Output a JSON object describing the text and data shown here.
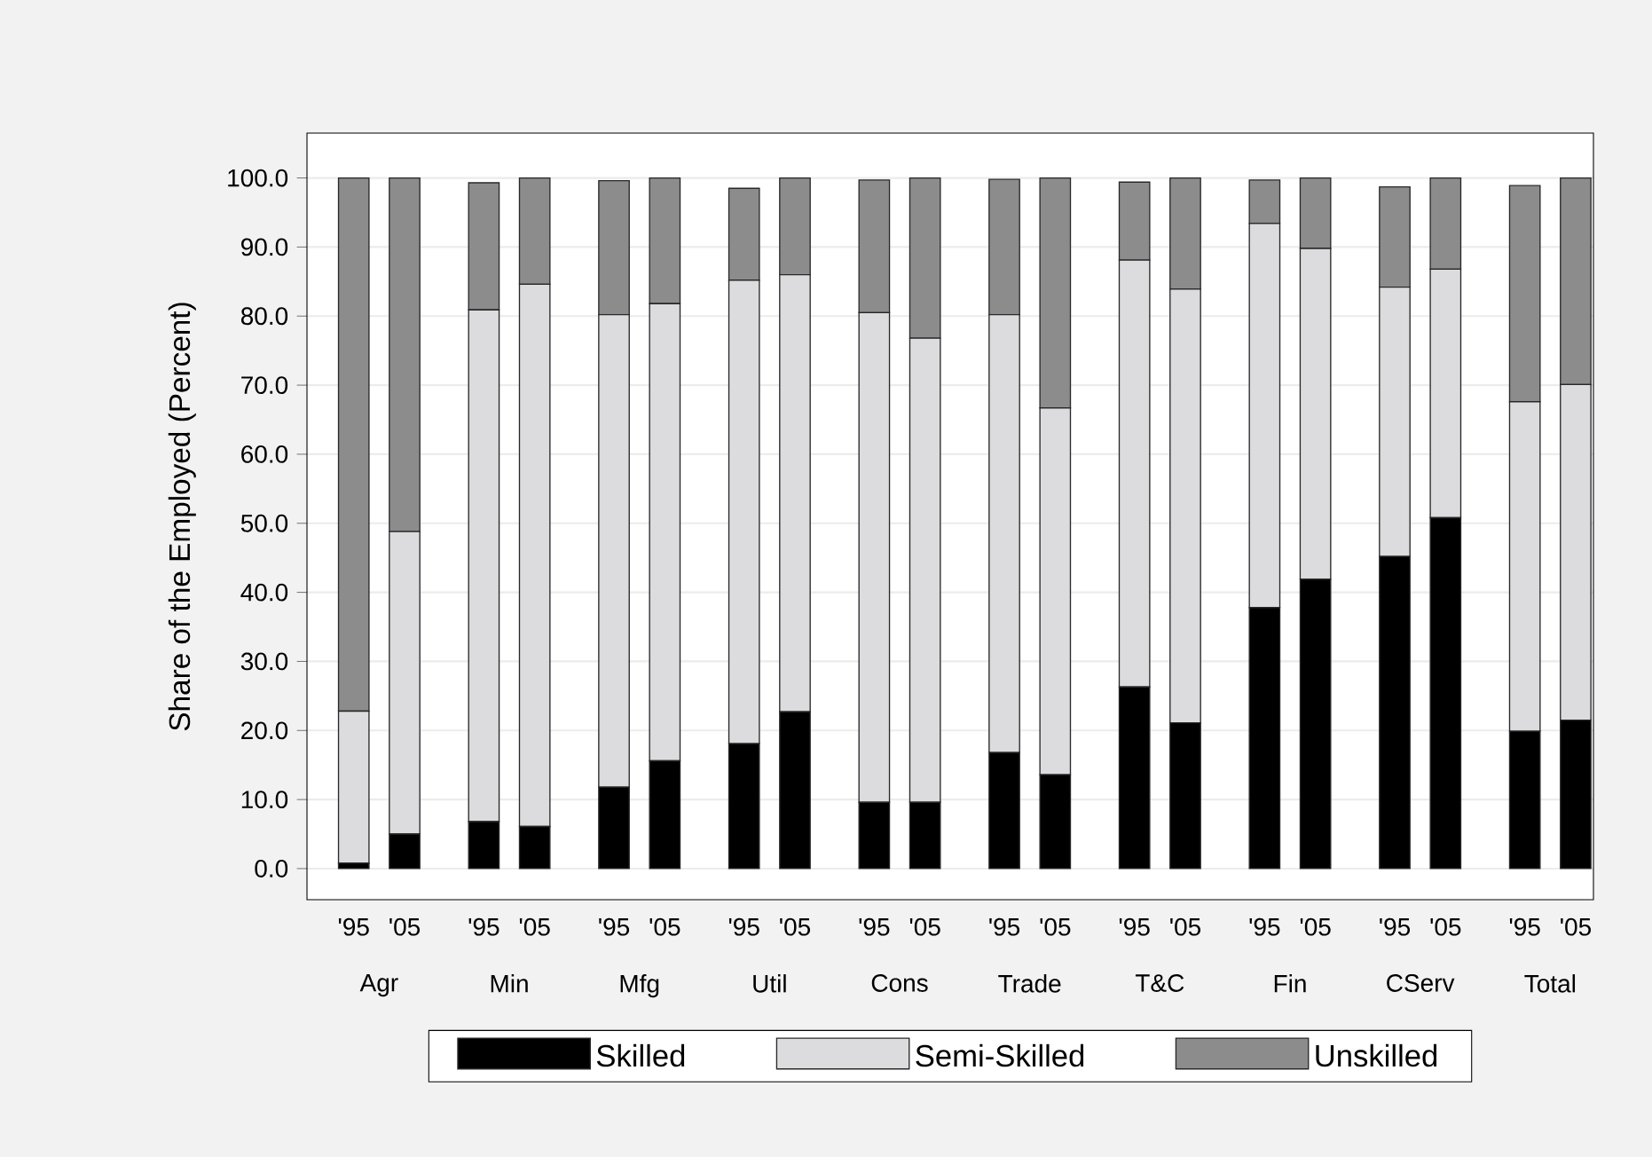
{
  "chart_data": {
    "type": "bar",
    "stacked": true,
    "ylabel": "Share of the Employed (Percent)",
    "categories": [
      "'95",
      "'05",
      "'95",
      "'05",
      "'95",
      "'05",
      "'95",
      "'05",
      "'95",
      "'05",
      "'95",
      "'05",
      "'95",
      "'05",
      "'95",
      "'05",
      "'95",
      "'05",
      "'95",
      "'05"
    ],
    "annotations": [
      "Agr",
      "Min",
      "Mfg",
      "Util",
      "Cons",
      "Trade",
      "T&C",
      "Fin",
      "CServ",
      "Total"
    ],
    "series": [
      {
        "name": "Skilled",
        "color": "#000000",
        "values": [
          0.8,
          5.0,
          6.8,
          6.1,
          11.8,
          15.6,
          18.1,
          22.7,
          9.6,
          9.6,
          16.8,
          13.6,
          26.3,
          21.1,
          37.8,
          41.9,
          45.2,
          50.8,
          19.9,
          21.5
        ]
      },
      {
        "name": "Semi-Skilled",
        "color": "#dcdcde",
        "values": [
          22.0,
          43.8,
          74.1,
          78.5,
          68.4,
          66.2,
          67.1,
          63.3,
          70.9,
          67.2,
          63.4,
          53.1,
          61.8,
          62.8,
          55.6,
          47.9,
          39.0,
          36.0,
          47.7,
          48.6
        ]
      },
      {
        "name": "Unskilled",
        "color": "#8c8c8c",
        "values": [
          77.2,
          51.2,
          18.4,
          15.4,
          19.4,
          18.2,
          13.3,
          14.0,
          19.2,
          23.2,
          19.6,
          33.3,
          11.3,
          16.1,
          6.3,
          10.2,
          14.5,
          13.2,
          31.3,
          29.9
        ]
      }
    ],
    "ylim": [
      -4.5,
      106.5
    ],
    "yticks": [
      {
        "value": 0,
        "label": "0.0"
      },
      {
        "value": 10,
        "label": "10.0"
      },
      {
        "value": 20,
        "label": "20.0"
      },
      {
        "value": 30,
        "label": "30.0"
      },
      {
        "value": 40,
        "label": "40.0"
      },
      {
        "value": 50,
        "label": "50.0"
      },
      {
        "value": 60,
        "label": "60.0"
      },
      {
        "value": 70,
        "label": "70.0"
      },
      {
        "value": 80,
        "label": "80.0"
      },
      {
        "value": 90,
        "label": "90.0"
      },
      {
        "value": 100,
        "label": "100.0"
      }
    ],
    "grid": "y",
    "legend": "bottom"
  }
}
